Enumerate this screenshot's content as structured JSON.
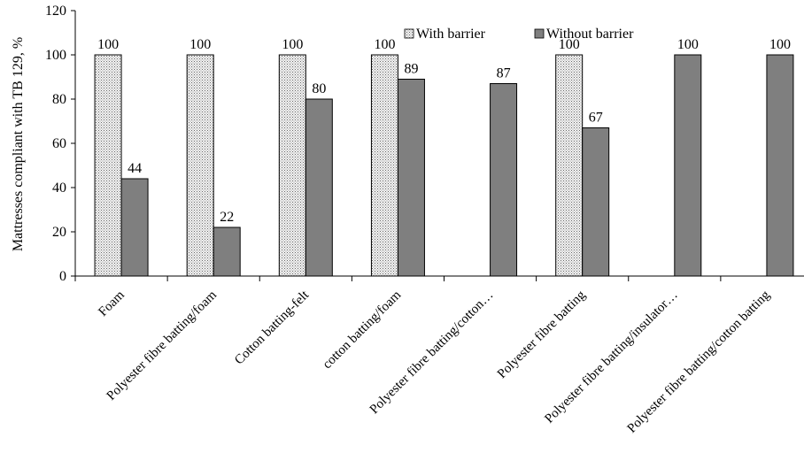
{
  "chart_data": {
    "type": "bar",
    "title": "",
    "xlabel": "",
    "ylabel": "Mattresses compliant with TB 129, %",
    "ylim": [
      0,
      120
    ],
    "yticks": [
      0,
      20,
      40,
      60,
      80,
      100,
      120
    ],
    "grid": false,
    "legend_position": "top-right",
    "categories": [
      "Foam",
      "Polyester fibre batting/foam",
      "Cotton batting-felt",
      "cotton batting/foam",
      "Polyester fibre batting/cotton…",
      "Polyester fibre batting",
      "Polyester fibre batting/insulator…",
      "Polyester fibre batting/cotton batting"
    ],
    "series": [
      {
        "name": "With barrier",
        "color": "#d9d9d9",
        "pattern": "dotted",
        "values": [
          100,
          100,
          100,
          100,
          null,
          100,
          null,
          null
        ],
        "labels": [
          "100",
          "100",
          "100",
          "100",
          null,
          "100",
          null,
          null
        ]
      },
      {
        "name": "Without barrier",
        "color": "#7f7f7f",
        "pattern": "solid",
        "values": [
          44,
          22,
          80,
          89,
          87,
          67,
          100,
          100
        ],
        "labels": [
          "44",
          "22",
          "80",
          "89",
          "87",
          "67",
          "100",
          "100"
        ]
      }
    ]
  }
}
